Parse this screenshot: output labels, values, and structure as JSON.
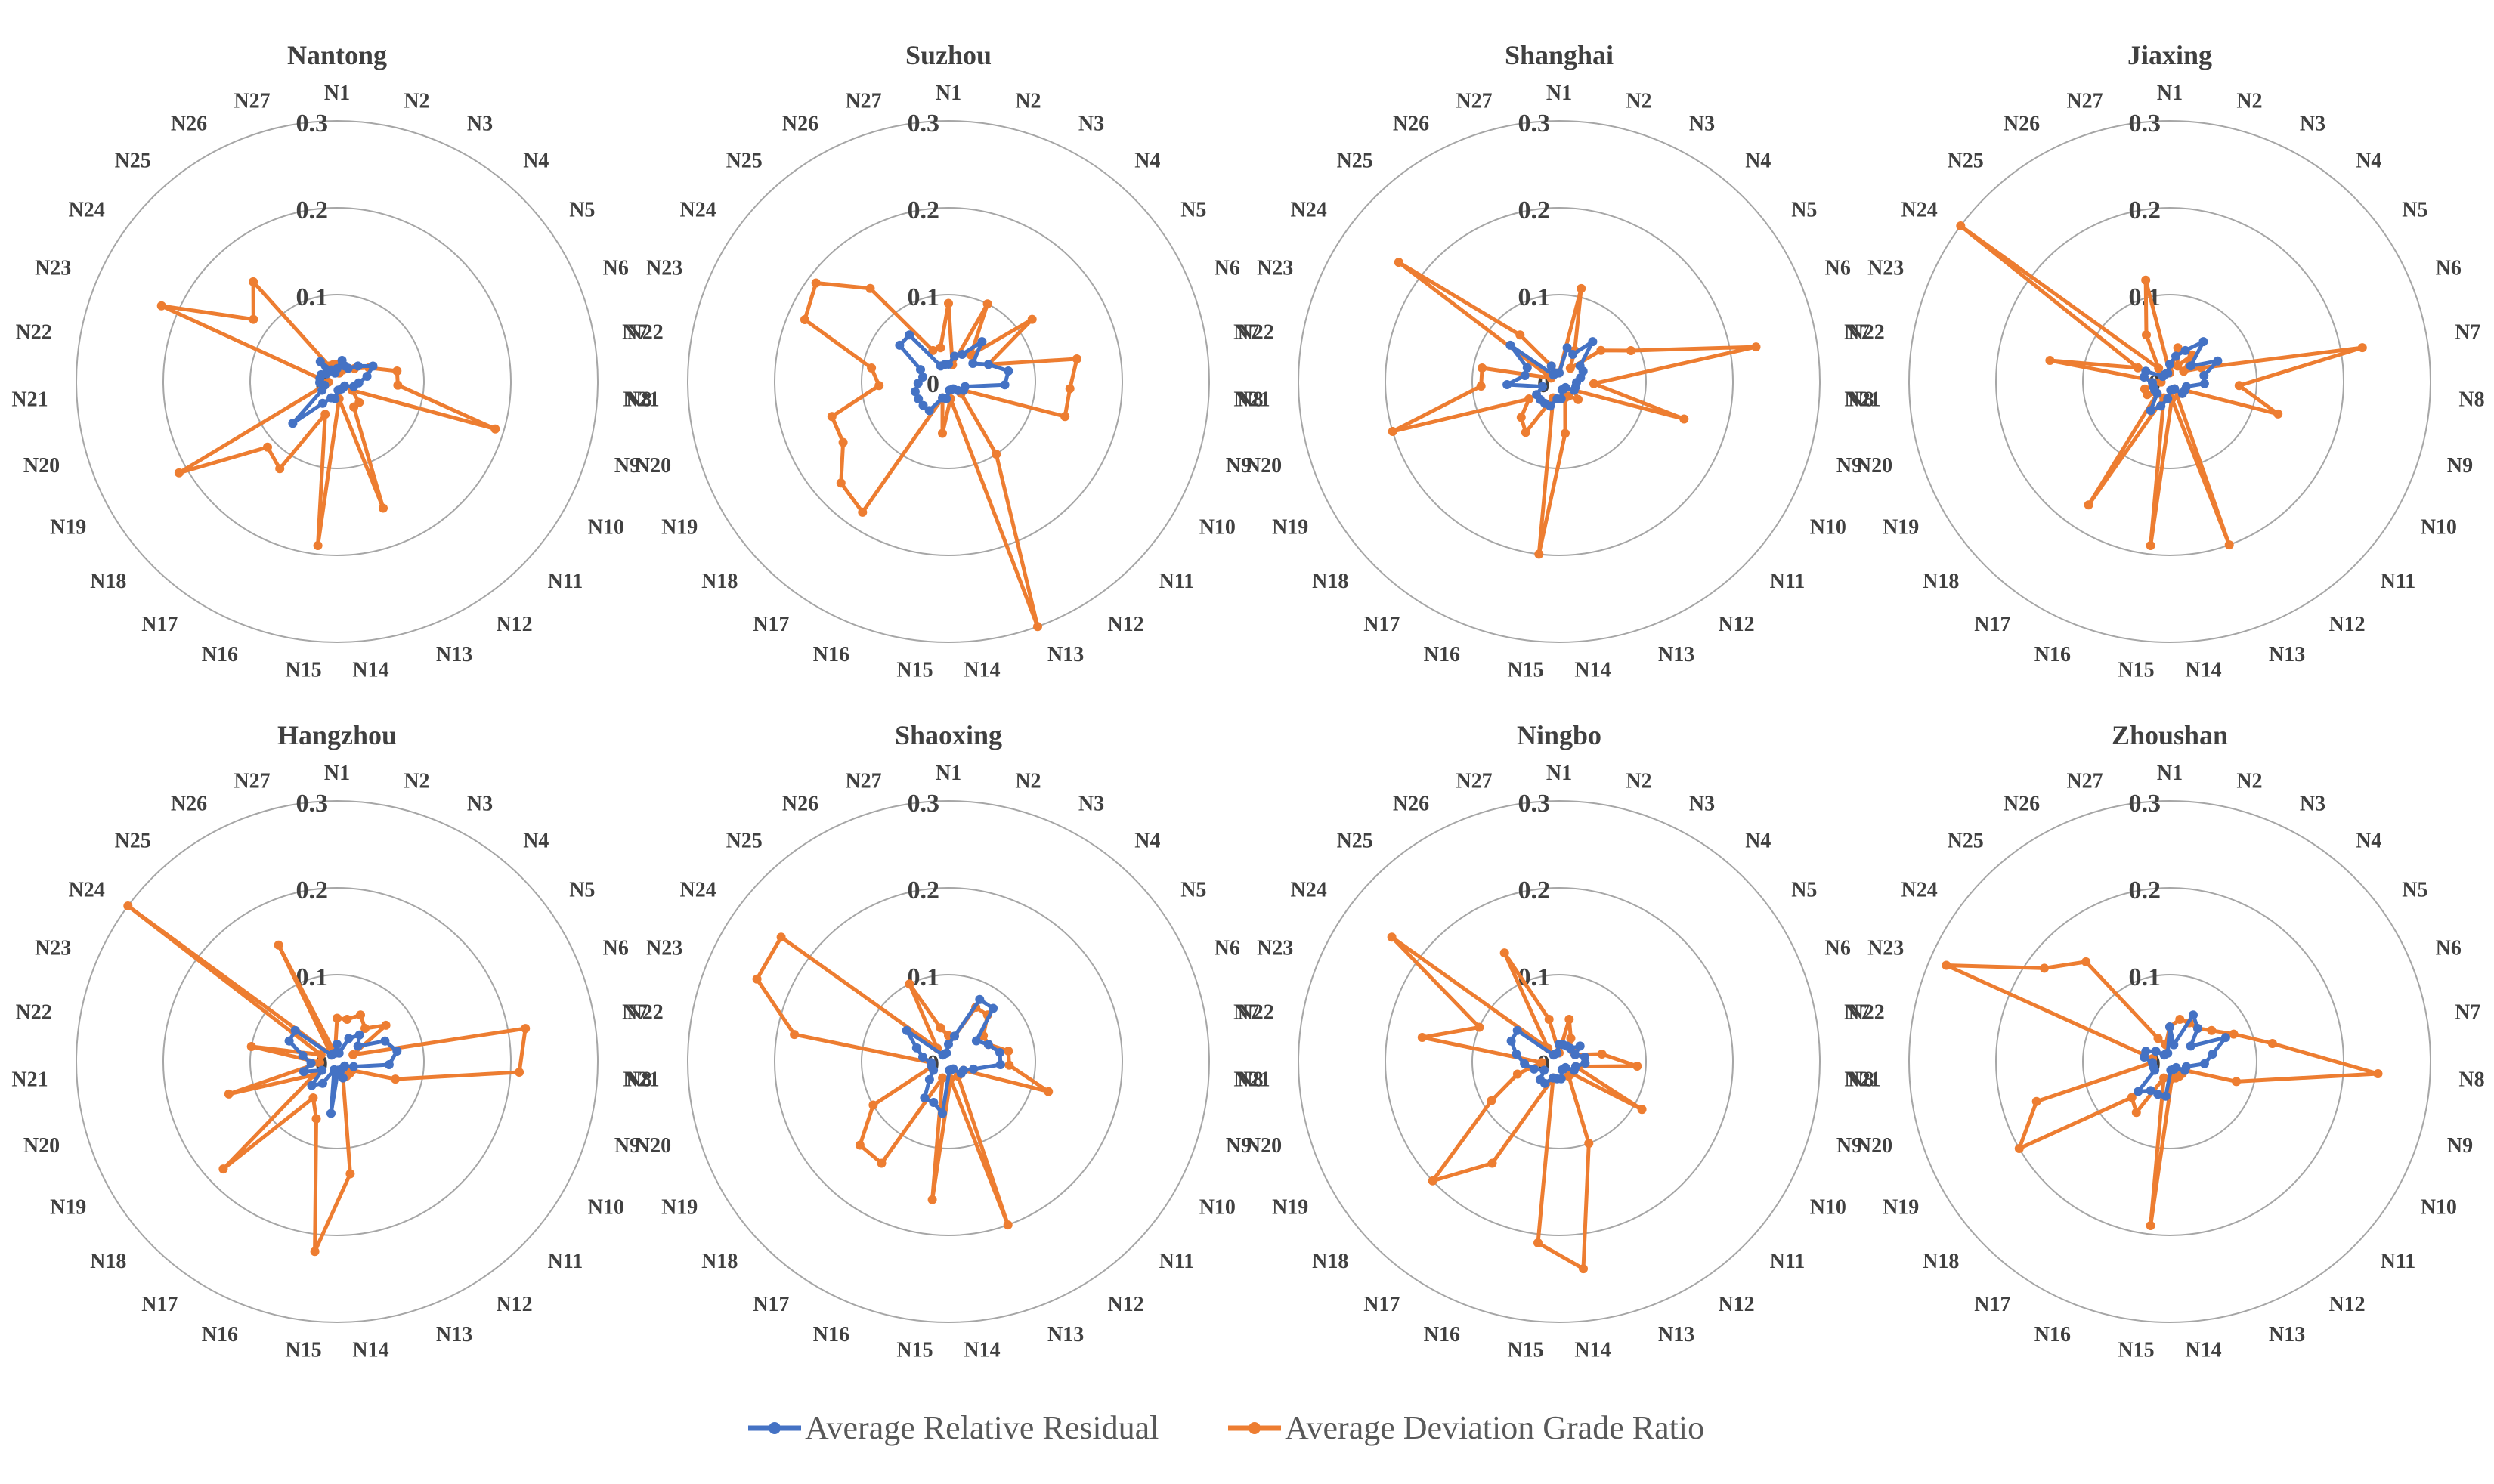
{
  "chart_data": {
    "type": "radar",
    "categories": [
      "N1",
      "N2",
      "N3",
      "N4",
      "N5",
      "N6",
      "N7",
      "N8",
      "N9",
      "N10",
      "N11",
      "N12",
      "N13",
      "N14",
      "N15",
      "N16",
      "N17",
      "N18",
      "N19",
      "N20",
      "N21",
      "N22",
      "N23",
      "N24",
      "N25",
      "N26",
      "N27"
    ],
    "rlim": [
      0,
      0.3
    ],
    "rticks": [
      "0",
      "0.1",
      "0.2",
      "0.3"
    ],
    "legend": [
      {
        "name": "Average Relative Residual",
        "color": "#4472C4"
      },
      {
        "name": "Average Deviation Grade Ratio",
        "color": "#ED7D31"
      }
    ],
    "charts": [
      {
        "title": "Nantong",
        "series": [
          {
            "name": "Average Relative Residual",
            "values": [
              0.015,
              0.025,
              0.02,
              0.02,
              0.03,
              0.045,
              0.035,
              0.025,
              0.02,
              0.01,
              0.01,
              0.01,
              0.01,
              0.01,
              0.02,
              0.02,
              0.03,
              0.07,
              0.02,
              0.015,
              0.02,
              0.02,
              0.02,
              0.015,
              0.03,
              0.015,
              0.01
            ]
          },
          {
            "name": "Average Deviation Grade Ratio",
            "values": [
              0.02,
              0.01,
              0.015,
              0.02,
              0.025,
              0.04,
              0.07,
              0.07,
              0.19,
              0.02,
              0.035,
              0.035,
              0.155,
              0.02,
              0.19,
              0.04,
              0.12,
              0.11,
              0.21,
              0.015,
              0.01,
              0.02,
              0.22,
              0.12,
              0.15,
              0.02,
              0.02
            ]
          }
        ]
      },
      {
        "title": "Suzhou",
        "series": [
          {
            "name": "Average Relative Residual",
            "values": [
              0.02,
              0.03,
              0.035,
              0.06,
              0.035,
              0.05,
              0.07,
              0.065,
              0.02,
              0.02,
              0.015,
              0.01,
              0.01,
              0.01,
              0.02,
              0.02,
              0.04,
              0.04,
              0.04,
              0.04,
              0.035,
              0.03,
              0.035,
              0.07,
              0.07,
              0.02,
              0.02
            ]
          },
          {
            "name": "Average Deviation Grade Ratio",
            "values": [
              0.09,
              0.02,
              0.1,
              0.04,
              0.12,
              0.05,
              0.15,
              0.14,
              0.14,
              0.02,
              0.02,
              0.1,
              0.3,
              0.02,
              0.06,
              0.02,
              0.18,
              0.17,
              0.14,
              0.14,
              0.08,
              0.09,
              0.18,
              0.19,
              0.14,
              0.04,
              0.04
            ]
          }
        ]
      },
      {
        "title": "Shanghai",
        "series": [
          {
            "name": "Average Relative Residual",
            "values": [
              0.01,
              0.04,
              0.035,
              0.06,
              0.03,
              0.03,
              0.025,
              0.02,
              0.02,
              0.02,
              0.01,
              0.01,
              0.01,
              0.02,
              0.02,
              0.03,
              0.03,
              0.03,
              0.03,
              0.02,
              0.06,
              0.04,
              0.04,
              0.07,
              0.01,
              0.02,
              0.01
            ]
          },
          {
            "name": "Average Deviation Grade Ratio",
            "values": [
              0.01,
              0.11,
              0.04,
              0.02,
              0.06,
              0.09,
              0.23,
              0.04,
              0.15,
              0.02,
              0.03,
              0.02,
              0.02,
              0.06,
              0.2,
              0.02,
              0.07,
              0.06,
              0.04,
              0.2,
              0.09,
              0.09,
              0.01,
              0.23,
              0.07,
              0.02,
              0.01
            ]
          }
        ]
      },
      {
        "title": "Jiaxing",
        "series": [
          {
            "name": "Average Relative Residual",
            "values": [
              0.02,
              0.03,
              0.04,
              0.06,
              0.03,
              0.06,
              0.04,
              0.04,
              0.02,
              0.02,
              0.02,
              0.01,
              0.01,
              0.01,
              0.02,
              0.03,
              0.04,
              0.02,
              0.02,
              0.02,
              0.02,
              0.03,
              0.03,
              0.01,
              0.01,
              0.01,
              0.01
            ]
          },
          {
            "name": "Average Deviation Grade Ratio",
            "values": [
              0.01,
              0.04,
              0.02,
              0.04,
              0.02,
              0.04,
              0.225,
              0.08,
              0.13,
              0.02,
              0.02,
              0.01,
              0.2,
              0.02,
              0.19,
              0.02,
              0.17,
              0.02,
              0.03,
              0.03,
              0.01,
              0.14,
              0.04,
              0.3,
              0.02,
              0.06,
              0.12
            ]
          }
        ]
      },
      {
        "title": "Hangzhou",
        "series": [
          {
            "name": "Average Relative Residual",
            "values": [
              0.02,
              0.01,
              0.03,
              0.04,
              0.03,
              0.06,
              0.07,
              0.06,
              0.02,
              0.01,
              0.01,
              0.01,
              0.02,
              0.01,
              0.06,
              0.01,
              0.03,
              0.04,
              0.02,
              0.04,
              0.03,
              0.04,
              0.06,
              0.06,
              0.01,
              0.01,
              0.01
            ]
          },
          {
            "name": "Average Deviation Grade Ratio",
            "values": [
              0.05,
              0.05,
              0.06,
              0.05,
              0.07,
              0.02,
              0.22,
              0.21,
              0.07,
              0.02,
              0.02,
              0.02,
              0.02,
              0.13,
              0.22,
              0.07,
              0.05,
              0.18,
              0.03,
              0.13,
              0.02,
              0.1,
              0.02,
              0.3,
              0.01,
              0.15,
              0.01
            ]
          }
        ]
      },
      {
        "title": "Shaoxing",
        "series": [
          {
            "name": "Average Relative Residual",
            "values": [
              0.02,
              0.03,
              0.08,
              0.08,
              0.04,
              0.05,
              0.06,
              0.06,
              0.03,
              0.02,
              0.02,
              0.01,
              0.01,
              0.01,
              0.06,
              0.05,
              0.05,
              0.03,
              0.02,
              0.02,
              0.02,
              0.03,
              0.04,
              0.06,
              0.01,
              0.01,
              0.01
            ]
          },
          {
            "name": "Average Deviation Grade Ratio",
            "values": [
              0.03,
              0.03,
              0.07,
              0.07,
              0.05,
              0.05,
              0.07,
              0.07,
              0.12,
              0.02,
              0.02,
              0.02,
              0.2,
              0.02,
              0.16,
              0.02,
              0.14,
              0.14,
              0.1,
              0.02,
              0.02,
              0.18,
              0.24,
              0.24,
              0.02,
              0.1,
              0.04
            ]
          }
        ]
      },
      {
        "title": "Ningbo",
        "series": [
          {
            "name": "Average Relative Residual",
            "values": [
              0.02,
              0.02,
              0.02,
              0.02,
              0.03,
              0.02,
              0.03,
              0.03,
              0.02,
              0.02,
              0.01,
              0.01,
              0.01,
              0.02,
              0.02,
              0.02,
              0.03,
              0.03,
              0.02,
              0.03,
              0.04,
              0.05,
              0.06,
              0.06,
              0.01,
              0.01,
              0.01
            ]
          },
          {
            "name": "Average Deviation Grade Ratio",
            "values": [
              0.01,
              0.05,
              0.03,
              0.02,
              0.02,
              0.02,
              0.05,
              0.09,
              0.02,
              0.11,
              0.02,
              0.02,
              0.1,
              0.24,
              0.21,
              0.02,
              0.14,
              0.2,
              0.09,
              0.05,
              0.02,
              0.16,
              0.1,
              0.24,
              0.02,
              0.14,
              0.05
            ]
          }
        ]
      },
      {
        "title": "Zhoushan",
        "series": [
          {
            "name": "Average Relative Residual",
            "values": [
              0.04,
              0.02,
              0.06,
              0.05,
              0.03,
              0.07,
              0.05,
              0.04,
              0.02,
              0.02,
              0.01,
              0.01,
              0.01,
              0.01,
              0.04,
              0.04,
              0.04,
              0.05,
              0.02,
              0.02,
              0.02,
              0.03,
              0.03,
              0.02,
              0.01,
              0.01,
              0.01
            ]
          },
          {
            "name": "Average Deviation Grade Ratio",
            "values": [
              0.04,
              0.05,
              0.05,
              0.05,
              0.06,
              0.08,
              0.12,
              0.24,
              0.08,
              0.02,
              0.02,
              0.02,
              0.02,
              0.02,
              0.19,
              0.02,
              0.07,
              0.06,
              0.2,
              0.16,
              0.02,
              0.02,
              0.28,
              0.18,
              0.15,
              0.03,
              0.02
            ]
          }
        ]
      }
    ]
  }
}
